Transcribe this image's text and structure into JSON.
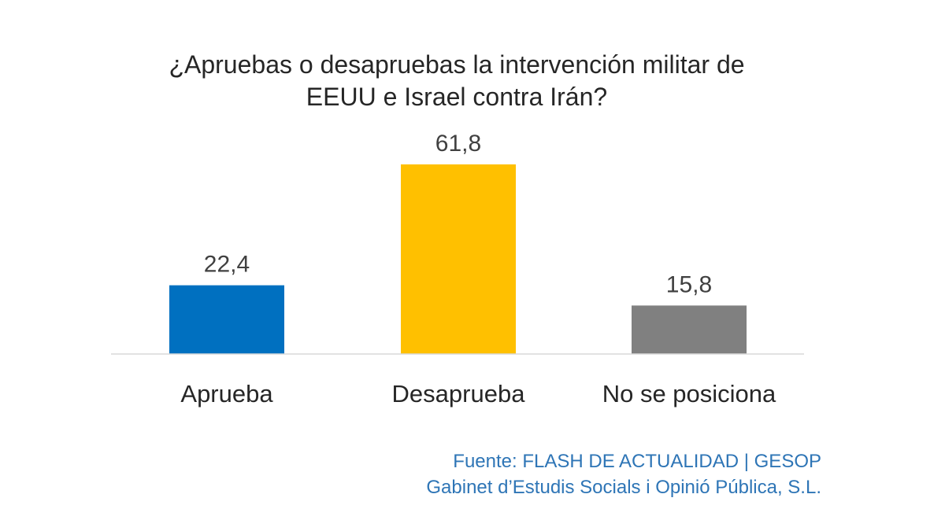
{
  "chart_data": {
    "type": "bar",
    "title_lines": [
      "¿Apruebas o desapruebas la intervención militar de",
      "EEUU e Israel contra Irán?"
    ],
    "categories": [
      "Aprueba",
      "Desaprueba",
      "No se posiciona"
    ],
    "values": [
      22.4,
      61.8,
      15.8
    ],
    "value_labels": [
      "22,4",
      "61,8",
      "15,8"
    ],
    "colors": [
      "#0070c0",
      "#ffc000",
      "#808080"
    ],
    "ylim": [
      0,
      70
    ],
    "grid": false,
    "legend": "none",
    "xlabel": "",
    "ylabel": ""
  },
  "source": {
    "line1": "Fuente: FLASH DE ACTUALIDAD | GESOP",
    "line2": "Gabinet d’Estudis Socials i Opinió Pública, S.L."
  }
}
